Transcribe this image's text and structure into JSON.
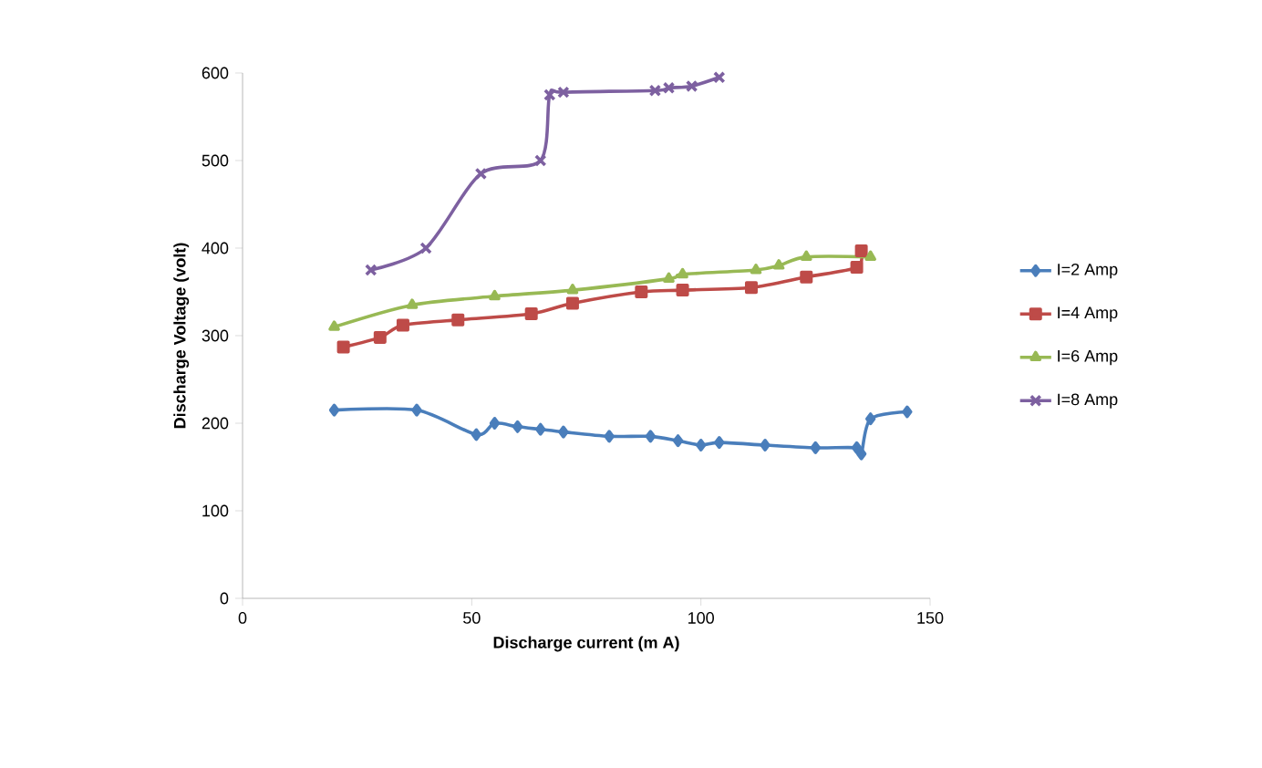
{
  "chart_data": {
    "type": "line",
    "xlabel": "Discharge current (m A)",
    "ylabel": "Discharge Voltage (volt)",
    "xlim": [
      0,
      150
    ],
    "xticks": [
      0,
      50,
      100,
      150
    ],
    "ylim": [
      0,
      600
    ],
    "yticks": [
      0,
      100,
      200,
      300,
      400,
      500,
      600
    ],
    "grid": false,
    "legend": "right",
    "series": [
      {
        "name": "I=2 Amp",
        "color": "#4a7ebb",
        "marker": "diamond",
        "x": [
          20,
          38,
          51,
          55,
          60,
          65,
          70,
          80,
          89,
          95,
          100,
          104,
          114,
          125,
          134,
          135,
          137,
          145
        ],
        "values": [
          215,
          215,
          187,
          200,
          196,
          193,
          190,
          185,
          185,
          180,
          175,
          178,
          175,
          172,
          172,
          165,
          205,
          213
        ]
      },
      {
        "name": "I=4 Amp",
        "color": "#be4b48",
        "marker": "square",
        "x": [
          22,
          30,
          35,
          47,
          63,
          72,
          87,
          96,
          111,
          123,
          134,
          135
        ],
        "values": [
          287,
          298,
          312,
          318,
          325,
          337,
          350,
          352,
          355,
          367,
          378,
          397
        ]
      },
      {
        "name": "I=6 Amp",
        "color": "#98b954",
        "marker": "triangle",
        "x": [
          20,
          37,
          55,
          72,
          93,
          96,
          112,
          117,
          123,
          137
        ],
        "values": [
          310,
          335,
          345,
          352,
          365,
          370,
          375,
          380,
          390,
          390
        ]
      },
      {
        "name": "I=8 Amp",
        "color": "#7d60a0",
        "marker": "cross",
        "x": [
          28,
          40,
          52,
          65,
          67,
          70,
          90,
          93,
          98,
          104
        ],
        "values": [
          375,
          400,
          485,
          500,
          575,
          578,
          580,
          583,
          585,
          595
        ]
      }
    ]
  }
}
